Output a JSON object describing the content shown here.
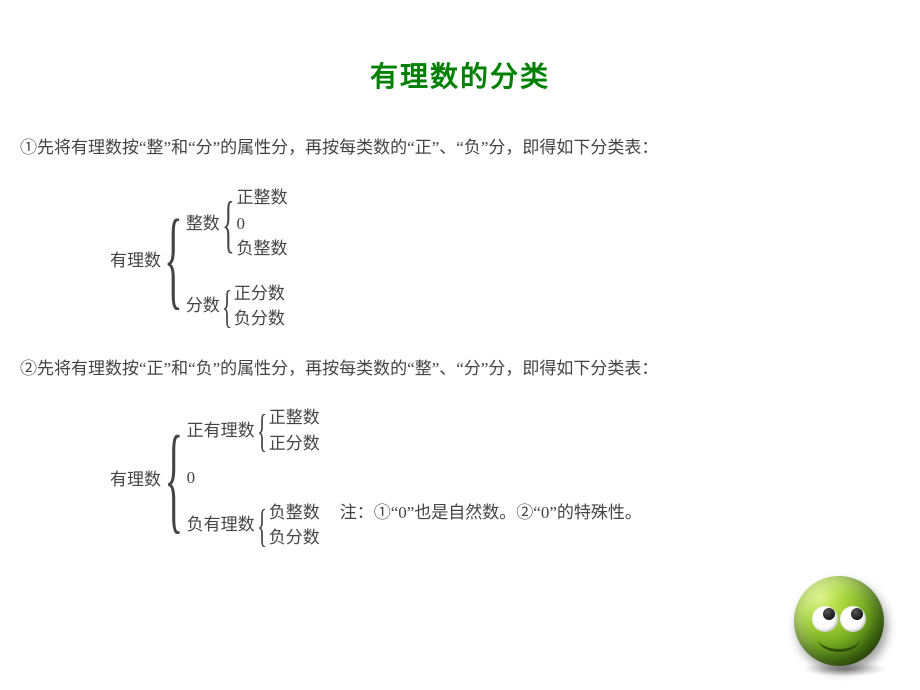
{
  "title": {
    "text": "有理数的分类",
    "color": "#008000",
    "fontsize": 28
  },
  "body": {
    "color": "#444444",
    "fontsize": 17
  },
  "para1": "①先将有理数按“整”和“分”的属性分，再按每类数的“正”、“负”分，即得如下分类表：",
  "class1": {
    "root": "有理数",
    "branches": [
      {
        "label": "整数",
        "items": [
          "正整数",
          "0",
          "负整数"
        ]
      },
      {
        "label": "分数",
        "items": [
          "正分数",
          "负分数"
        ]
      }
    ]
  },
  "para2": "②先将有理数按“正”和“负”的属性分，再按每类数的“整”、“分”分，即得如下分类表：",
  "class2": {
    "root": "有理数",
    "branches": [
      {
        "label": "正有理数",
        "items": [
          "正整数",
          "正分数"
        ]
      },
      {
        "label": "0",
        "items": []
      },
      {
        "label": "负有理数",
        "items": [
          "负整数",
          "负分数"
        ]
      }
    ]
  },
  "note": "注：①“0”也是自然数。②“0”的特殊性。",
  "emoji": {
    "face_gradient_inner": "#d9f27a",
    "face_gradient_outer": "#3b6b0c",
    "eye_white": "#ffffff",
    "pupil": "#111111",
    "mouth": "#2f4f0a"
  }
}
